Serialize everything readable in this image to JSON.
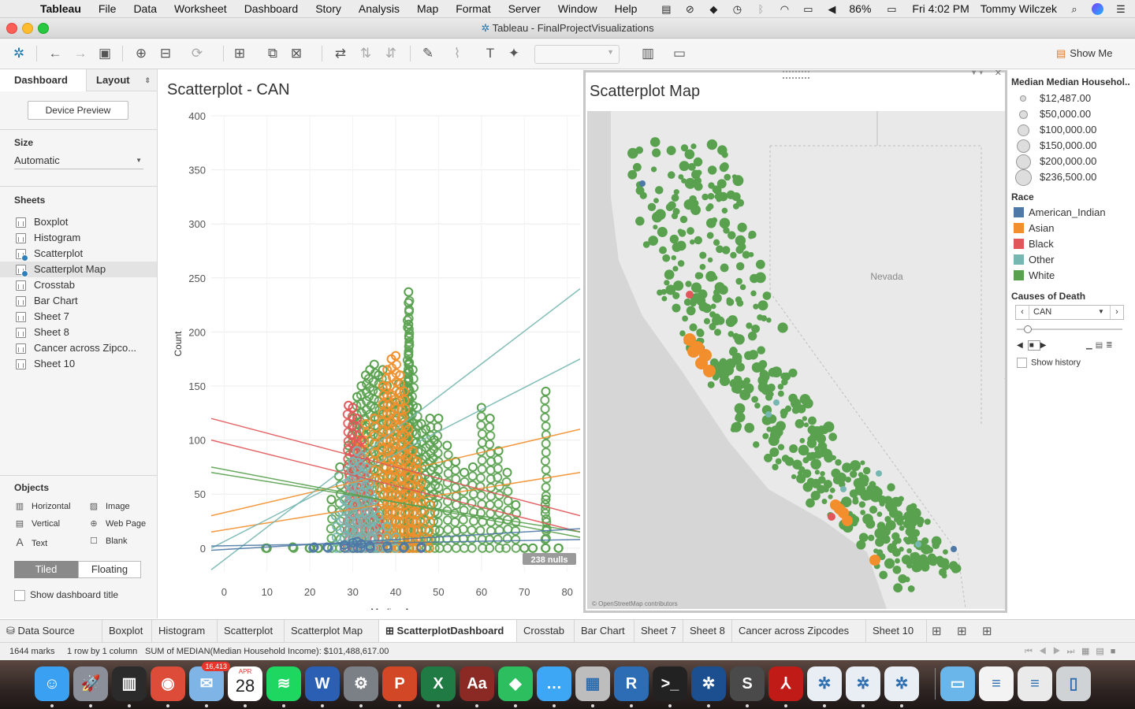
{
  "menubar": {
    "items": [
      "Tableau",
      "File",
      "Data",
      "Worksheet",
      "Dashboard",
      "Story",
      "Analysis",
      "Map",
      "Format",
      "Server",
      "Window",
      "Help"
    ],
    "battery": "86%",
    "clock": "Fri 4:02 PM",
    "user": "Tommy Wilczek"
  },
  "window": {
    "title": "Tableau - FinalProjectVisualizations"
  },
  "toolbar": {
    "show_me": "Show Me"
  },
  "left": {
    "tab_dashboard": "Dashboard",
    "tab_layout": "Layout",
    "device_preview": "Device Preview",
    "size_title": "Size",
    "size_value": "Automatic",
    "sheets_title": "Sheets",
    "sheets": [
      "Boxplot",
      "Histogram",
      "Scatterplot",
      "Scatterplot Map",
      "Crosstab",
      "Bar Chart",
      "Sheet 7",
      "Sheet 8",
      "Cancer across Zipco...",
      "Sheet 10"
    ],
    "selected_sheet": "Scatterplot Map",
    "objects_title": "Objects",
    "objects": [
      "Horizontal",
      "Image",
      "Vertical",
      "Web Page",
      "Text",
      "Blank"
    ],
    "tiled": "Tiled",
    "floating": "Floating",
    "show_title": "Show dashboard title"
  },
  "scatter": {
    "title": "Scatterplot - CAN",
    "nulls": "238 nulls"
  },
  "chart_data": {
    "type": "scatter",
    "title": "Scatterplot - CAN",
    "xlabel": "Median Age",
    "ylabel": "Count",
    "xlim": [
      -3,
      83
    ],
    "ylim": [
      -22,
      400
    ],
    "x_ticks": [
      0,
      10,
      20,
      30,
      40,
      50,
      60,
      70,
      80
    ],
    "y_ticks": [
      0,
      50,
      100,
      150,
      200,
      250,
      300,
      350,
      400
    ],
    "grid": true,
    "series": [
      {
        "name": "White",
        "color": "#59a14f",
        "points": [
          [
            10,
            0
          ],
          [
            16,
            1
          ],
          [
            20,
            0
          ],
          [
            22,
            0
          ],
          [
            25,
            45
          ],
          [
            27,
            75
          ],
          [
            29,
            95
          ],
          [
            30,
            120
          ],
          [
            31,
            140
          ],
          [
            32,
            150
          ],
          [
            33,
            160
          ],
          [
            34,
            165
          ],
          [
            35,
            170
          ],
          [
            36,
            160
          ],
          [
            37,
            165
          ],
          [
            38,
            150
          ],
          [
            39,
            140
          ],
          [
            40,
            135
          ],
          [
            41,
            160
          ],
          [
            42,
            150
          ],
          [
            43,
            170
          ],
          [
            44,
            165
          ],
          [
            45,
            130
          ],
          [
            46,
            115
          ],
          [
            47,
            110
          ],
          [
            48,
            120
          ],
          [
            49,
            100
          ],
          [
            50,
            120
          ],
          [
            52,
            95
          ],
          [
            54,
            80
          ],
          [
            56,
            70
          ],
          [
            58,
            75
          ],
          [
            60,
            130
          ],
          [
            62,
            120
          ],
          [
            64,
            90
          ],
          [
            66,
            70
          ],
          [
            68,
            40
          ],
          [
            70,
            0
          ],
          [
            72,
            0
          ],
          [
            75,
            145
          ],
          [
            75,
            45
          ],
          [
            78,
            0
          ],
          [
            43,
            237
          ],
          [
            43,
            227
          ],
          [
            43,
            207
          ]
        ]
      },
      {
        "name": "Asian",
        "color": "#f28e2b",
        "points": [
          [
            31,
            100
          ],
          [
            33,
            115
          ],
          [
            35,
            120
          ],
          [
            37,
            150
          ],
          [
            38,
            165
          ],
          [
            39,
            175
          ],
          [
            40,
            178
          ],
          [
            41,
            160
          ],
          [
            42,
            145
          ],
          [
            43,
            110
          ],
          [
            44,
            90
          ],
          [
            45,
            80
          ],
          [
            46,
            60
          ],
          [
            48,
            40
          ]
        ]
      },
      {
        "name": "Black",
        "color": "#e15759",
        "points": [
          [
            29,
            132
          ],
          [
            30,
            130
          ],
          [
            31,
            120
          ],
          [
            32,
            100
          ],
          [
            33,
            80
          ],
          [
            34,
            60
          ],
          [
            35,
            40
          ],
          [
            36,
            25
          ]
        ]
      },
      {
        "name": "Other",
        "color": "#76b7b2",
        "points": [
          [
            26,
            30
          ],
          [
            28,
            45
          ],
          [
            29,
            60
          ],
          [
            30,
            80
          ],
          [
            31,
            90
          ],
          [
            32,
            85
          ],
          [
            33,
            75
          ],
          [
            34,
            60
          ],
          [
            35,
            45
          ],
          [
            36,
            30
          ],
          [
            38,
            20
          ],
          [
            40,
            10
          ]
        ]
      },
      {
        "name": "American_Indian",
        "color": "#4e79a7",
        "points": [
          [
            21,
            1
          ],
          [
            24,
            1
          ],
          [
            28,
            3
          ],
          [
            30,
            5
          ],
          [
            31,
            6
          ],
          [
            32,
            4
          ],
          [
            34,
            2
          ],
          [
            38,
            2
          ],
          [
            42,
            1
          ],
          [
            46,
            1
          ]
        ]
      }
    ],
    "trend_lines": [
      {
        "name": "Asian",
        "color": "#f28e2b",
        "from": [
          -3,
          30
        ],
        "to": [
          83,
          110
        ]
      },
      {
        "name": "Asian",
        "color": "#f28e2b",
        "from": [
          -3,
          15
        ],
        "to": [
          83,
          70
        ]
      },
      {
        "name": "Other",
        "color": "#76b7b2",
        "from": [
          -3,
          -20
        ],
        "to": [
          83,
          240
        ]
      },
      {
        "name": "Other",
        "color": "#76b7b2",
        "from": [
          -3,
          0
        ],
        "to": [
          83,
          175
        ]
      },
      {
        "name": "Black",
        "color": "#e15759",
        "from": [
          -3,
          120
        ],
        "to": [
          83,
          30
        ]
      },
      {
        "name": "Black",
        "color": "#e15759",
        "from": [
          -3,
          100
        ],
        "to": [
          83,
          15
        ]
      },
      {
        "name": "White",
        "color": "#59a14f",
        "from": [
          -3,
          75
        ],
        "to": [
          83,
          10
        ]
      },
      {
        "name": "White",
        "color": "#59a14f",
        "from": [
          -3,
          70
        ],
        "to": [
          83,
          15
        ]
      },
      {
        "name": "American_Indian",
        "color": "#4e79a7",
        "from": [
          -3,
          -2
        ],
        "to": [
          83,
          18
        ]
      },
      {
        "name": "American_Indian",
        "color": "#4e79a7",
        "from": [
          -3,
          2
        ],
        "to": [
          83,
          8
        ]
      }
    ]
  },
  "map": {
    "title": "Scatterplot Map",
    "state_label": "Nevada",
    "attribution": "© OpenStreetMap contributors"
  },
  "legend": {
    "size_title": "Median Median Househol..",
    "sizes": [
      "$12,487.00",
      "$50,000.00",
      "$100,000.00",
      "$150,000.00",
      "$200,000.00",
      "$236,500.00"
    ],
    "race_title": "Race",
    "races": [
      {
        "label": "American_Indian",
        "color": "#4e79a7"
      },
      {
        "label": "Asian",
        "color": "#f28e2b"
      },
      {
        "label": "Black",
        "color": "#e15759"
      },
      {
        "label": "Other",
        "color": "#76b7b2"
      },
      {
        "label": "White",
        "color": "#59a14f"
      }
    ],
    "filter_title": "Causes of Death",
    "filter_value": "CAN",
    "show_history": "Show history"
  },
  "tabs": [
    "Data Source",
    "Boxplot",
    "Histogram",
    "Scatterplot",
    "Scatterplot Map",
    "ScatterplotDashboard",
    "Crosstab",
    "Bar Chart",
    "Sheet 7",
    "Sheet 8",
    "Cancer across Zipcodes",
    "Sheet 10"
  ],
  "active_tab": "ScatterplotDashboard",
  "status": {
    "marks": "1644 marks",
    "dims": "1 row by 1 column",
    "sum": "SUM of MEDIAN(Median Household Income): $101,488,617.00"
  },
  "dock": {
    "badge": "16,413",
    "calendar_month": "APR",
    "calendar_day": "28"
  }
}
